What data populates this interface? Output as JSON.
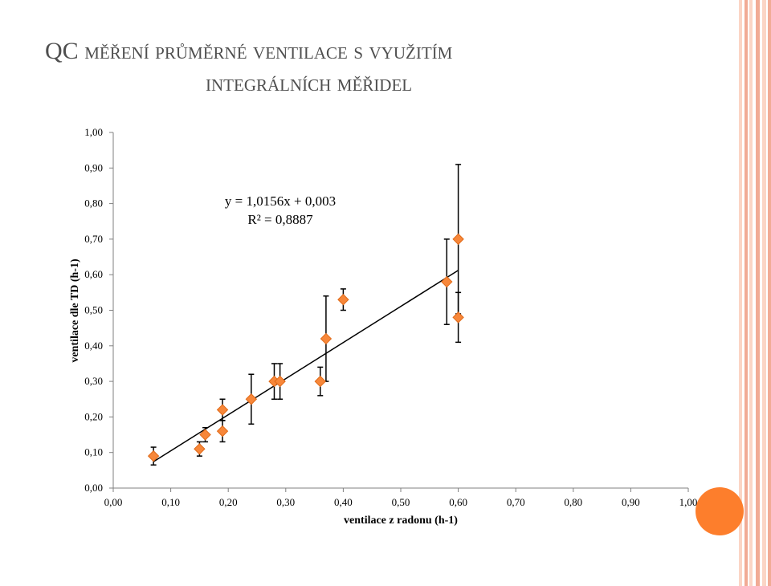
{
  "slide": {
    "title_main": "QC",
    "title_rest": "měření průměrné ventilace s využitím",
    "title_line2": "integrálních měřidel"
  },
  "colors": {
    "accent": "#fd7e2c",
    "marker": "#f7873a",
    "stripe_light": "#fbd5c5",
    "stripe_dark": "#f1ab95",
    "trendline": "#000000",
    "axis": "#808080"
  },
  "chart_data": {
    "type": "scatter",
    "xlabel": "ventilace  z radonu  (h-1)",
    "ylabel": "ventilace dle TD  (h-1)",
    "xlim": [
      0,
      1
    ],
    "ylim": [
      0,
      1
    ],
    "xticks": [
      "0,00",
      "0,10",
      "0,20",
      "0,30",
      "0,40",
      "0,50",
      "0,60",
      "0,70",
      "0,80",
      "0,90",
      "1,00"
    ],
    "yticks": [
      "0,00",
      "0,10",
      "0,20",
      "0,30",
      "0,40",
      "0,50",
      "0,60",
      "0,70",
      "0,80",
      "0,90",
      "1,00"
    ],
    "grid": false,
    "points": [
      {
        "x": 0.07,
        "y": 0.09,
        "ylow": 0.065,
        "yhigh": 0.115
      },
      {
        "x": 0.15,
        "y": 0.11,
        "ylow": 0.09,
        "yhigh": 0.13
      },
      {
        "x": 0.16,
        "y": 0.15,
        "ylow": 0.13,
        "yhigh": 0.17
      },
      {
        "x": 0.19,
        "y": 0.22,
        "ylow": 0.19,
        "yhigh": 0.25
      },
      {
        "x": 0.19,
        "y": 0.16,
        "ylow": 0.13,
        "yhigh": 0.19
      },
      {
        "x": 0.24,
        "y": 0.25,
        "ylow": 0.18,
        "yhigh": 0.32
      },
      {
        "x": 0.28,
        "y": 0.3,
        "ylow": 0.25,
        "yhigh": 0.35
      },
      {
        "x": 0.29,
        "y": 0.3,
        "ylow": 0.25,
        "yhigh": 0.35
      },
      {
        "x": 0.36,
        "y": 0.3,
        "ylow": 0.26,
        "yhigh": 0.34
      },
      {
        "x": 0.37,
        "y": 0.42,
        "ylow": 0.3,
        "yhigh": 0.54
      },
      {
        "x": 0.4,
        "y": 0.53,
        "ylow": 0.5,
        "yhigh": 0.56
      },
      {
        "x": 0.58,
        "y": 0.58,
        "ylow": 0.46,
        "yhigh": 0.7
      },
      {
        "x": 0.6,
        "y": 0.7,
        "ylow": 0.49,
        "yhigh": 0.91
      },
      {
        "x": 0.6,
        "y": 0.48,
        "ylow": 0.41,
        "yhigh": 0.55
      }
    ],
    "trendline": {
      "slope": 1.0156,
      "intercept": 0.003,
      "x_range": [
        0.07,
        0.6
      ]
    },
    "annotation_eq": "y = 1,0156x + 0,003",
    "annotation_r2": "R² = 0,8887"
  }
}
